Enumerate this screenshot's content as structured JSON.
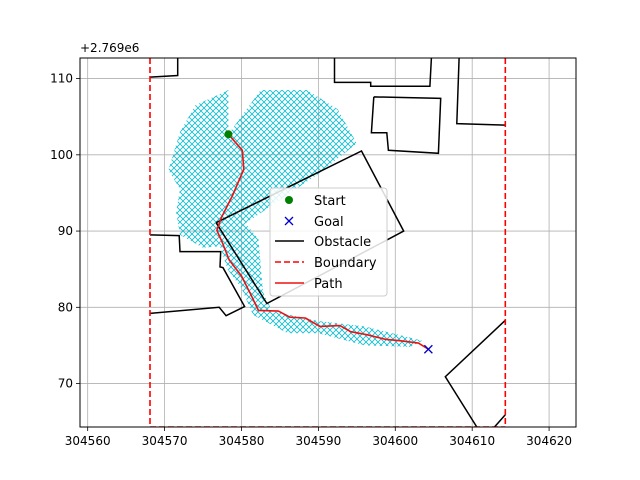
{
  "chart_data": {
    "type": "line",
    "title": "",
    "xlabel": "",
    "ylabel": "",
    "xlim": [
      304559,
      304623.5
    ],
    "ylim": [
      64.3,
      112.7
    ],
    "y_offset_label": "+2.769e6",
    "x_ticks": [
      {
        "value": 304560,
        "label": "304560"
      },
      {
        "value": 304570,
        "label": "304570"
      },
      {
        "value": 304580,
        "label": "304580"
      },
      {
        "value": 304590,
        "label": "304590"
      },
      {
        "value": 304600,
        "label": "304600"
      },
      {
        "value": 304610,
        "label": "304610"
      },
      {
        "value": 304620,
        "label": "304620"
      }
    ],
    "y_ticks": [
      {
        "value": 70,
        "label": "70"
      },
      {
        "value": 80,
        "label": "80"
      },
      {
        "value": 90,
        "label": "90"
      },
      {
        "value": 100,
        "label": "100"
      },
      {
        "value": 110,
        "label": "110"
      }
    ],
    "grid": true,
    "legend_position": "center",
    "colors": {
      "explored": "#17becf",
      "start": "#008000",
      "goal": "#0000cc",
      "obstacle": "#000000",
      "boundary": "#ff0000",
      "path": "#ee1111",
      "grid": "#b0b0b0"
    },
    "legend": [
      {
        "label": "Start",
        "marker": "circle",
        "color": "#008000"
      },
      {
        "label": "Goal",
        "marker": "x",
        "color": "#0000cc"
      },
      {
        "label": "Obstacle",
        "marker": "solid-line",
        "color": "#000000"
      },
      {
        "label": "Boundary",
        "marker": "dashed-line",
        "color": "#ff0000"
      },
      {
        "label": "Path",
        "marker": "solid-line",
        "color": "#ee1111"
      }
    ],
    "start": {
      "x": 304578.3,
      "y": 102.7
    },
    "goal": {
      "x": 304604.3,
      "y": 74.5
    },
    "boundary": [
      [
        [
          304568.1,
          112.7
        ],
        [
          304568.1,
          64.3
        ]
      ],
      [
        [
          304614.3,
          112.7
        ],
        [
          304614.3,
          64.3
        ]
      ],
      [
        [
          304568.1,
          64.3
        ],
        [
          304614.3,
          64.3
        ]
      ]
    ],
    "obstacles": [
      [
        [
          304568.1,
          110.2
        ],
        [
          304571.7,
          110.4
        ],
        [
          304571.7,
          112.7
        ]
      ],
      [
        [
          304592.1,
          112.7
        ],
        [
          304592.1,
          109.5
        ],
        [
          304596.8,
          109.5
        ],
        [
          304596.8,
          109.0
        ],
        [
          304604.5,
          109.0
        ],
        [
          304604.7,
          112.7
        ]
      ],
      [
        [
          304608.3,
          112.7
        ],
        [
          304608.0,
          104.1
        ],
        [
          304614.3,
          103.9
        ]
      ],
      [
        [
          304597.2,
          107.6
        ],
        [
          304605.9,
          107.4
        ],
        [
          304605.6,
          100.2
        ],
        [
          304599.1,
          100.6
        ],
        [
          304598.9,
          102.9
        ],
        [
          304596.9,
          102.9
        ],
        [
          304597.2,
          107.6
        ]
      ],
      [
        [
          304576.7,
          91.1
        ],
        [
          304595.6,
          100.5
        ],
        [
          304601.1,
          90.0
        ],
        [
          304583.3,
          80.5
        ],
        [
          304576.7,
          91.1
        ]
      ],
      [
        [
          304568.1,
          89.5
        ],
        [
          304571.9,
          89.4
        ],
        [
          304572.0,
          87.3
        ],
        [
          304577.3,
          87.3
        ],
        [
          304577.2,
          85.3
        ],
        [
          304577.6,
          85.2
        ],
        [
          304580.4,
          80.1
        ],
        [
          304578.0,
          78.9
        ],
        [
          304577.1,
          80.0
        ],
        [
          304568.1,
          79.2
        ]
      ],
      [
        [
          304614.3,
          78.3
        ],
        [
          304606.5,
          70.9
        ],
        [
          304610.6,
          64.3
        ]
      ],
      [
        [
          304612.9,
          64.3
        ],
        [
          304614.3,
          65.9
        ]
      ]
    ],
    "path": [
      [
        304578.3,
        102.7
      ],
      [
        304580.1,
        100.6
      ],
      [
        304580.3,
        98.1
      ],
      [
        304578.8,
        94.6
      ],
      [
        304577.4,
        91.8
      ],
      [
        304576.8,
        90.1
      ],
      [
        304577.5,
        88.5
      ],
      [
        304578.4,
        86.2
      ],
      [
        304580.0,
        84.1
      ],
      [
        304581.2,
        81.7
      ],
      [
        304582.2,
        79.6
      ],
      [
        304584.8,
        79.5
      ],
      [
        304586.3,
        78.7
      ],
      [
        304588.3,
        78.6
      ],
      [
        304590.2,
        77.5
      ],
      [
        304592.8,
        77.6
      ],
      [
        304594.2,
        76.8
      ],
      [
        304596.3,
        76.4
      ],
      [
        304598.7,
        75.8
      ],
      [
        304600.7,
        75.6
      ],
      [
        304603.0,
        75.3
      ],
      [
        304604.3,
        74.5
      ]
    ],
    "explored_region": [
      [
        304578.3,
        102.7
      ],
      [
        304582.5,
        108.5
      ],
      [
        304588.5,
        108.5
      ],
      [
        304592.5,
        106.0
      ],
      [
        304595.0,
        101.5
      ],
      [
        304590.0,
        97.5
      ],
      [
        304580.5,
        91.0
      ],
      [
        304582.2,
        89.0
      ],
      [
        304582.8,
        82.0
      ],
      [
        304584.0,
        79.5
      ],
      [
        304590.0,
        78.2
      ],
      [
        304596.0,
        77.5
      ],
      [
        304602.0,
        76.0
      ],
      [
        304603.5,
        75.6
      ],
      [
        304602.0,
        74.8
      ],
      [
        304596.0,
        75.0
      ],
      [
        304590.0,
        76.6
      ],
      [
        304586.0,
        76.6
      ],
      [
        304581.5,
        79.0
      ],
      [
        304580.0,
        82.5
      ],
      [
        304578.2,
        85.0
      ],
      [
        304577.2,
        88.0
      ],
      [
        304575.0,
        87.8
      ],
      [
        304572.0,
        89.5
      ],
      [
        304571.5,
        92.5
      ],
      [
        304572.0,
        95.5
      ],
      [
        304570.5,
        98.0
      ],
      [
        304572.0,
        103.0
      ],
      [
        304574.0,
        106.5
      ],
      [
        304578.3,
        108.5
      ]
    ]
  }
}
